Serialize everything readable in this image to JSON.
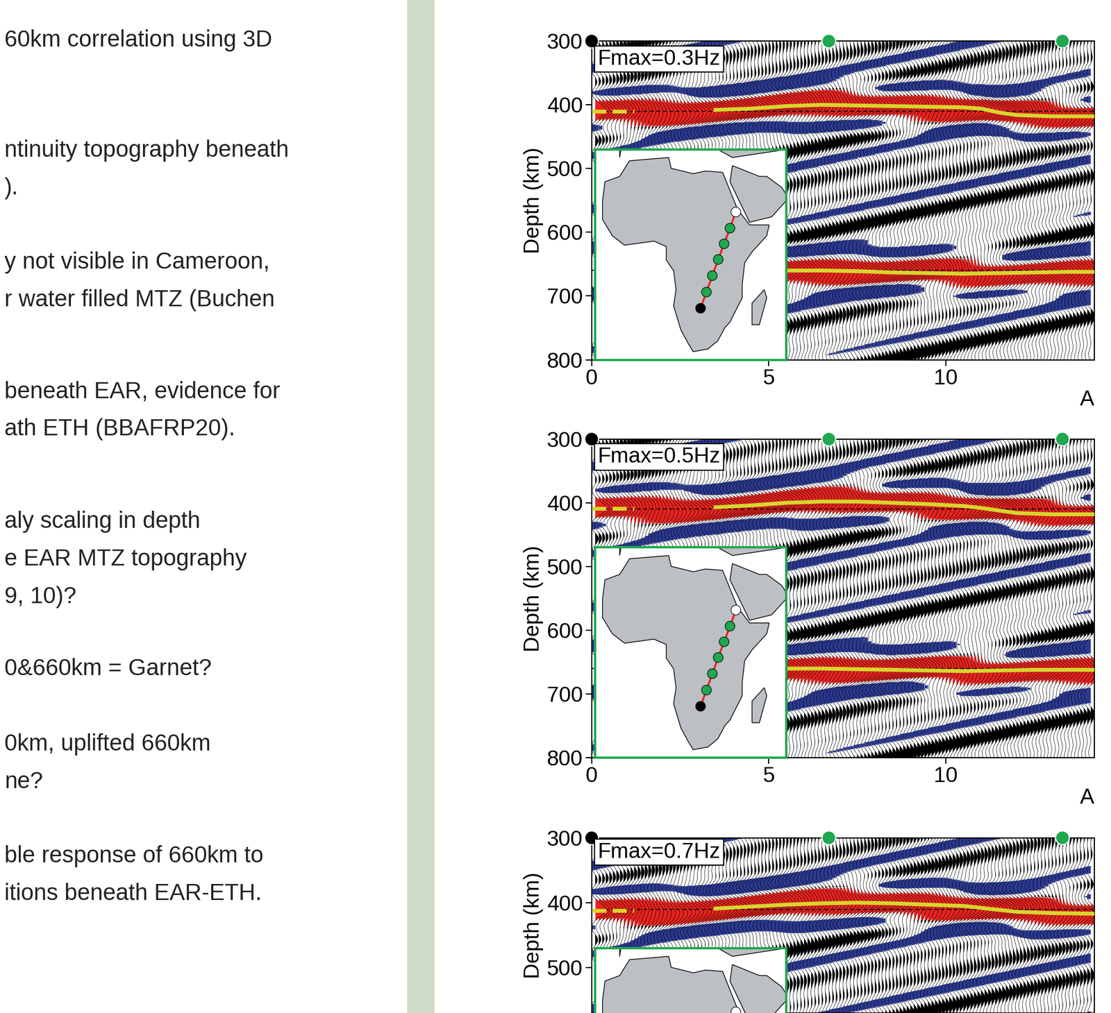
{
  "chart_data": [
    {
      "type": "wiggle",
      "annotation": "Fmax=0.3Hz",
      "ylabel": "Depth (km)",
      "xlabel": "A",
      "xlim": [
        0,
        14.2
      ],
      "ylim": [
        800,
        300
      ],
      "xticks": [
        0,
        5,
        10
      ],
      "yticks": [
        300,
        400,
        500,
        600,
        700,
        800
      ],
      "reference_depths": [
        410,
        660
      ],
      "discontinuities": [
        {
          "color": "#d6d62e",
          "line_style": "dashed",
          "x": [
            0,
            0.4,
            0.8,
            1.2
          ],
          "depth": [
            410,
            410,
            410,
            410
          ]
        },
        {
          "color": "#d6d62e",
          "line_style": "solid",
          "x": [
            3.5,
            4.5,
            5.5,
            6.5,
            7.5,
            8.5,
            9.5,
            10.5,
            11.0,
            11.5,
            12.0,
            13.0,
            14.2
          ],
          "depth": [
            408,
            406,
            402,
            400,
            401,
            402,
            403,
            404,
            406,
            412,
            416,
            418,
            418
          ]
        },
        {
          "color": "#d6d62e",
          "line_style": "solid",
          "x": [
            5.5,
            6.5,
            7.5,
            8.5,
            9.5,
            10.5,
            11.5,
            12.5,
            13.5,
            14.2
          ],
          "depth": [
            660,
            660,
            661,
            663,
            664,
            665,
            664,
            663,
            662,
            662
          ]
        }
      ],
      "stations": {
        "x": [
          0,
          6.7,
          13.3
        ],
        "colors": [
          "#000000",
          "#1fa84f",
          "#1fa84f"
        ]
      }
    },
    {
      "type": "wiggle",
      "annotation": "Fmax=0.5Hz",
      "ylabel": "Depth (km)",
      "xlabel": "A",
      "xlim": [
        0,
        14.2
      ],
      "ylim": [
        800,
        300
      ],
      "xticks": [
        0,
        5,
        10
      ],
      "yticks": [
        300,
        400,
        500,
        600,
        700,
        800
      ],
      "reference_depths": [
        410,
        660
      ],
      "discontinuities": [
        {
          "color": "#d6d62e",
          "line_style": "dashed",
          "x": [
            0,
            0.4,
            0.8,
            1.2
          ],
          "depth": [
            409,
            409,
            409,
            409
          ]
        },
        {
          "color": "#d6d62e",
          "line_style": "solid",
          "x": [
            3.5,
            4.5,
            5.5,
            6.5,
            7.5,
            8.5,
            9.5,
            10.5,
            11.0,
            11.5,
            12.0,
            13.0,
            14.2
          ],
          "depth": [
            407,
            404,
            400,
            398,
            398,
            400,
            402,
            405,
            408,
            412,
            416,
            418,
            418
          ]
        },
        {
          "color": "#d6d62e",
          "line_style": "solid",
          "x": [
            5.5,
            6.5,
            7.5,
            8.5,
            9.5,
            10.5,
            11.5,
            12.5,
            13.5,
            14.2
          ],
          "depth": [
            660,
            660,
            661,
            662,
            663,
            664,
            663,
            662,
            662,
            662
          ]
        }
      ],
      "stations": {
        "x": [
          0,
          6.7,
          13.3
        ],
        "colors": [
          "#000000",
          "#1fa84f",
          "#1fa84f"
        ]
      }
    },
    {
      "type": "wiggle",
      "annotation": "Fmax=0.7Hz",
      "ylabel": "Depth (km)",
      "xlim": [
        0,
        14.2
      ],
      "ylim": [
        570,
        300
      ],
      "xticks": [
        0,
        5,
        10
      ],
      "yticks": [
        300,
        400,
        500
      ],
      "tick_labels": "y",
      "reference_depths": [
        410
      ],
      "discontinuities": [
        {
          "color": "#d6d62e",
          "line_style": "dashed",
          "x": [
            0,
            0.4,
            0.8,
            1.2
          ],
          "depth": [
            412,
            412,
            412,
            412
          ]
        },
        {
          "color": "#d6d62e",
          "line_style": "solid",
          "x": [
            3.5,
            4.5,
            5.5,
            6.5,
            7.5,
            8.5,
            9.5,
            10.5,
            11.0,
            11.5,
            12.0,
            13.0,
            14.2
          ],
          "depth": [
            409,
            406,
            403,
            401,
            400,
            401,
            403,
            405,
            408,
            411,
            414,
            416,
            417
          ]
        }
      ],
      "stations": {
        "x": [
          0,
          6.7,
          13.3
        ],
        "colors": [
          "#000000",
          "#1fa84f",
          "#1fa84f"
        ]
      }
    }
  ],
  "inset_map": {
    "lon": [
      23.0,
      25.4,
      27.8,
      30.2,
      32.6,
      35.0,
      37.4
    ],
    "lat": [
      -18.9,
      -12.9,
      -6.8,
      -0.8,
      5.0,
      10.8,
      16.8
    ],
    "colors": [
      "#000000",
      "#1fa84f",
      "#1fa84f",
      "#1fa84f",
      "#1fa84f",
      "#1fa84f",
      "#ffffff"
    ],
    "line_color": "#e8231f"
  },
  "text_column": [
    [
      "60km correlation using 3D"
    ],
    [
      "ntinuity topography beneath",
      ")."
    ],
    [
      "y not visible in Cameroon,",
      "r water filled MTZ (Buchen"
    ],
    [
      "beneath EAR, evidence for",
      "ath ETH (BBAFRP20)."
    ],
    [
      "aly scaling in depth",
      "e EAR MTZ topography",
      "9, 10)?"
    ],
    [
      "0&660km = Garnet?"
    ],
    [
      "0km, uplifted 660km",
      "ne?"
    ],
    [
      "ble response of 660km to",
      "itions beneath EAR-ETH."
    ]
  ]
}
